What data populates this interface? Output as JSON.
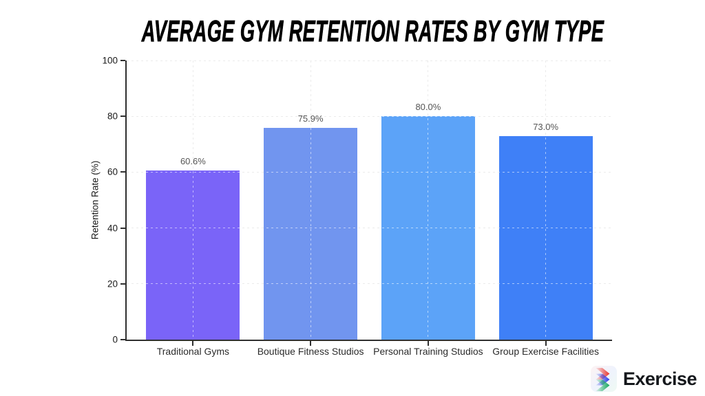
{
  "title": {
    "text": "Average Gym Retention Rates by Gym Type"
  },
  "chart_data": {
    "type": "bar",
    "title": "Average Gym Retention Rates by Gym Type",
    "categories": [
      "Traditional Gyms",
      "Boutique Fitness Studios",
      "Personal Training Studios",
      "Group Exercise Facilities"
    ],
    "values": [
      60.6,
      75.9,
      80.0,
      73.0
    ],
    "value_labels": [
      "60.6%",
      "75.9%",
      "80.0%",
      "73.0%"
    ],
    "bar_colors": [
      "#7A64F8",
      "#7195EF",
      "#5CA3F8",
      "#3F80F7"
    ],
    "xlabel": "",
    "ylabel": "Retention Rate (%)",
    "ylim": [
      0,
      100
    ],
    "yticks": [
      0,
      20,
      40,
      60,
      80,
      100
    ],
    "grid": {
      "style": "dashed",
      "axes": "both",
      "color": "#d2d2d2",
      "over_bar_color": "rgba(255,255,255,0.55)"
    },
    "legend": "none",
    "axis_color": "#2f2f2f",
    "value_label_color": "#555555"
  },
  "branding": {
    "logo_text": "Exercise",
    "logo_icon": "tri-chevron-icon",
    "icon_colors": {
      "red": "#E8352E",
      "blue": "#2B3BE8",
      "green": "#16A85E"
    }
  }
}
